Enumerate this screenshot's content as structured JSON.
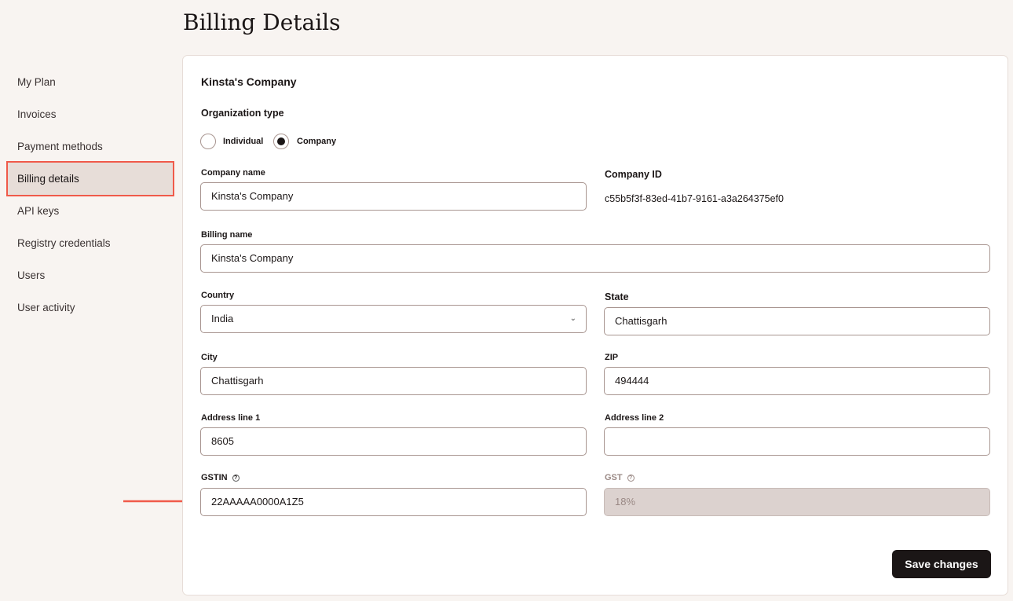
{
  "page_title": "Billing Details",
  "sidebar": {
    "items": [
      {
        "label": "My Plan"
      },
      {
        "label": "Invoices"
      },
      {
        "label": "Payment methods"
      },
      {
        "label": "Billing details",
        "active": true
      },
      {
        "label": "API keys"
      },
      {
        "label": "Registry credentials"
      },
      {
        "label": "Users"
      },
      {
        "label": "User activity"
      }
    ]
  },
  "card": {
    "heading": "Kinsta's Company",
    "org_type_label": "Organization type",
    "org_options": [
      {
        "label": "Individual",
        "selected": false
      },
      {
        "label": "Company",
        "selected": true
      }
    ],
    "company_name": {
      "label": "Company name",
      "value": "Kinsta's Company"
    },
    "company_id": {
      "label": "Company ID",
      "value": "c55b5f3f-83ed-41b7-9161-a3a264375ef0"
    },
    "billing_name": {
      "label": "Billing name",
      "value": "Kinsta's Company"
    },
    "country": {
      "label": "Country",
      "value": "India"
    },
    "state": {
      "label": "State",
      "value": "Chattisgarh"
    },
    "city": {
      "label": "City",
      "value": "Chattisgarh"
    },
    "zip": {
      "label": "ZIP",
      "value": "494444"
    },
    "address1": {
      "label": "Address line 1",
      "value": "8605"
    },
    "address2": {
      "label": "Address line 2",
      "value": ""
    },
    "gstin": {
      "label": "GSTIN",
      "value": "22AAAAA0000A1Z5"
    },
    "gst": {
      "label": "GST",
      "value": "18%",
      "disabled": true
    },
    "save_label": "Save changes"
  },
  "colors": {
    "highlight": "#f05a4a",
    "background": "#f8f4f1",
    "button": "#1b1616"
  }
}
